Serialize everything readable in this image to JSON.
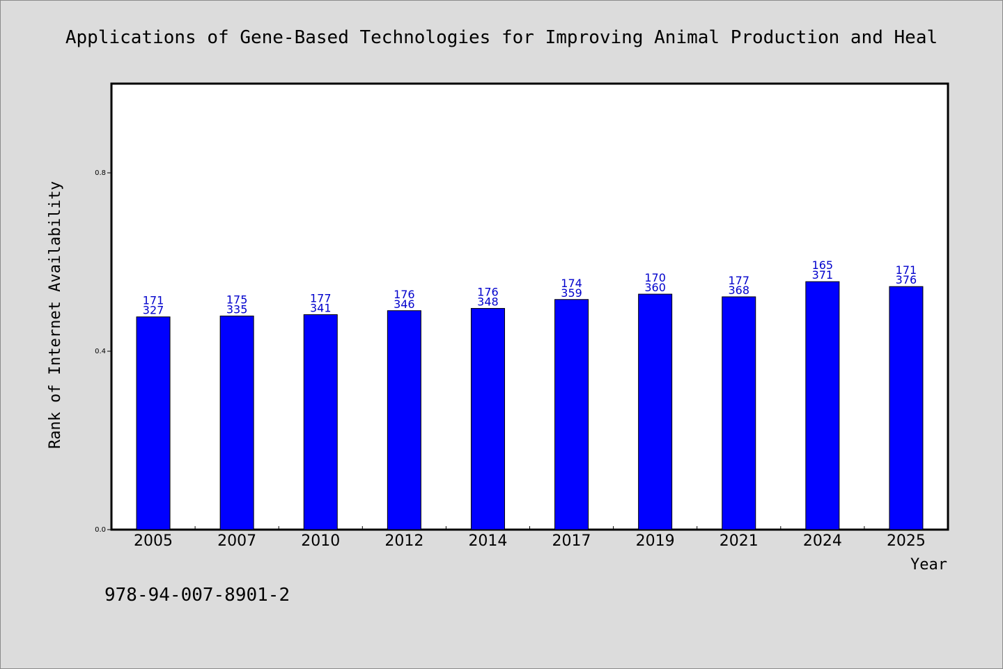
{
  "chart_data": {
    "type": "bar",
    "title": "Applications of Gene-Based Technologies for Improving Animal Production and Heal",
    "xlabel": "Year",
    "ylabel": "Rank of Internet Availability",
    "categories": [
      "2005",
      "2007",
      "2010",
      "2012",
      "2014",
      "2017",
      "2019",
      "2021",
      "2024",
      "2025"
    ],
    "values": [
      0.477,
      0.479,
      0.482,
      0.491,
      0.496,
      0.516,
      0.528,
      0.522,
      0.556,
      0.545
    ],
    "labels_top": [
      "171",
      "175",
      "177",
      "176",
      "176",
      "174",
      "170",
      "177",
      "165",
      "171"
    ],
    "labels_bottom": [
      "327",
      "335",
      "341",
      "346",
      "348",
      "359",
      "360",
      "368",
      "371",
      "376"
    ],
    "ylim": [
      0,
      1.0
    ],
    "yticks": [
      "0.0",
      "0.4",
      "0.8"
    ],
    "ytick_values": [
      0,
      0.4,
      0.8
    ],
    "grid": false,
    "bar_color": "#0000ff",
    "label_color": "#0000cc",
    "footnote": "978-94-007-8901-2"
  }
}
